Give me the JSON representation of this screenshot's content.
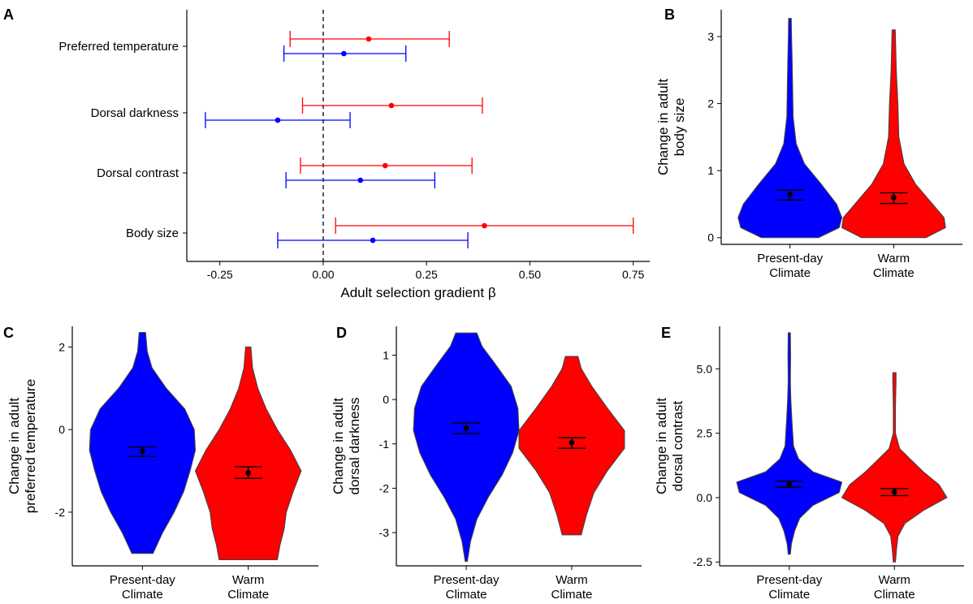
{
  "chart_data": [
    {
      "panel": "A",
      "type": "forest",
      "xlabel": "Adult selection gradient β",
      "xlim": [
        -0.33,
        0.79
      ],
      "xticks": [
        -0.25,
        0.0,
        0.25,
        0.5,
        0.75
      ],
      "xtick_labels": [
        "-0.25",
        "0.00",
        "0.25",
        "0.50",
        "0.75"
      ],
      "reference_line": 0,
      "categories": [
        "Preferred temperature",
        "Dorsal darkness",
        "Dorsal contrast",
        "Body size"
      ],
      "series": [
        {
          "color": "#ff0000",
          "estimate": [
            0.11,
            0.165,
            0.15,
            0.39
          ],
          "lower": [
            -0.08,
            -0.05,
            -0.055,
            0.03
          ],
          "upper": [
            0.305,
            0.385,
            0.36,
            0.75
          ]
        },
        {
          "color": "#0000ff",
          "estimate": [
            0.05,
            -0.11,
            0.09,
            0.12
          ],
          "lower": [
            -0.095,
            -0.285,
            -0.09,
            -0.11
          ],
          "upper": [
            0.2,
            0.065,
            0.27,
            0.35
          ]
        }
      ]
    },
    {
      "panel": "B",
      "type": "violin",
      "ylabel": [
        "Change in adult",
        "body size"
      ],
      "ylim": [
        -0.1,
        3.4
      ],
      "yticks": [
        0,
        1,
        2,
        3
      ],
      "ytick_labels": [
        "0",
        "1",
        "2",
        "3"
      ],
      "categories": [
        [
          "Present-day",
          "Climate"
        ],
        [
          "Warm",
          "Climate"
        ]
      ],
      "groups": [
        {
          "color": "#0000ff",
          "mean": 0.64,
          "se_low": 0.56,
          "se_high": 0.71,
          "density": [
            [
              0.0,
              0.55
            ],
            [
              0.15,
              0.95
            ],
            [
              0.3,
              1.0
            ],
            [
              0.5,
              0.9
            ],
            [
              0.8,
              0.6
            ],
            [
              1.1,
              0.28
            ],
            [
              1.4,
              0.12
            ],
            [
              1.8,
              0.06
            ],
            [
              2.3,
              0.05
            ],
            [
              2.7,
              0.04
            ],
            [
              3.0,
              0.03
            ],
            [
              3.27,
              0.025
            ]
          ]
        },
        {
          "color": "#ff0000",
          "mean": 0.6,
          "se_low": 0.51,
          "se_high": 0.67,
          "density": [
            [
              0.0,
              0.62
            ],
            [
              0.15,
              1.0
            ],
            [
              0.3,
              0.97
            ],
            [
              0.5,
              0.75
            ],
            [
              0.8,
              0.42
            ],
            [
              1.1,
              0.2
            ],
            [
              1.5,
              0.1
            ],
            [
              2.0,
              0.08
            ],
            [
              2.5,
              0.05
            ],
            [
              2.8,
              0.04
            ],
            [
              3.1,
              0.03
            ]
          ]
        }
      ]
    },
    {
      "panel": "C",
      "type": "violin",
      "ylabel": [
        "Change in adult",
        "preferred temperature"
      ],
      "ylim": [
        -3.3,
        2.5
      ],
      "yticks": [
        -2,
        0,
        2
      ],
      "ytick_labels": [
        "-2",
        "0",
        "2"
      ],
      "categories": [
        [
          "Present-day",
          "Climate"
        ],
        [
          "Warm",
          "Climate"
        ]
      ],
      "groups": [
        {
          "color": "#0000ff",
          "mean": -0.52,
          "se_low": -0.65,
          "se_high": -0.42,
          "density": [
            [
              -3.0,
              0.2
            ],
            [
              -2.5,
              0.38
            ],
            [
              -2.0,
              0.6
            ],
            [
              -1.5,
              0.78
            ],
            [
              -1.0,
              0.9
            ],
            [
              -0.5,
              1.0
            ],
            [
              0.0,
              0.98
            ],
            [
              0.5,
              0.8
            ],
            [
              1.0,
              0.45
            ],
            [
              1.5,
              0.18
            ],
            [
              1.9,
              0.09
            ],
            [
              2.35,
              0.06
            ]
          ]
        },
        {
          "color": "#ff0000",
          "mean": -1.05,
          "se_low": -1.18,
          "se_high": -0.9,
          "density": [
            [
              -3.15,
              0.55
            ],
            [
              -2.8,
              0.6
            ],
            [
              -2.4,
              0.68
            ],
            [
              -2.0,
              0.72
            ],
            [
              -1.5,
              0.85
            ],
            [
              -1.0,
              1.0
            ],
            [
              -0.5,
              0.8
            ],
            [
              0.0,
              0.55
            ],
            [
              0.5,
              0.34
            ],
            [
              1.0,
              0.18
            ],
            [
              1.5,
              0.08
            ],
            [
              2.0,
              0.05
            ]
          ]
        }
      ]
    },
    {
      "panel": "D",
      "type": "violin",
      "ylabel": [
        "Change in adult",
        "dorsal darkness"
      ],
      "ylim": [
        -3.75,
        1.65
      ],
      "yticks": [
        -3,
        -2,
        -1,
        0,
        1
      ],
      "ytick_labels": [
        "-3",
        "-2",
        "-1",
        "0",
        "1"
      ],
      "categories": [
        [
          "Present-day",
          "Climate"
        ],
        [
          "Warm",
          "Climate"
        ]
      ],
      "groups": [
        {
          "color": "#0000ff",
          "mean": -0.65,
          "se_low": -0.77,
          "se_high": -0.53,
          "density": [
            [
              -3.65,
              0.02
            ],
            [
              -3.2,
              0.08
            ],
            [
              -2.7,
              0.2
            ],
            [
              -2.2,
              0.42
            ],
            [
              -1.7,
              0.68
            ],
            [
              -1.2,
              0.88
            ],
            [
              -0.7,
              1.0
            ],
            [
              -0.2,
              0.98
            ],
            [
              0.3,
              0.85
            ],
            [
              0.8,
              0.55
            ],
            [
              1.2,
              0.3
            ],
            [
              1.5,
              0.2
            ]
          ]
        },
        {
          "color": "#ff0000",
          "mean": -0.97,
          "se_low": -1.1,
          "se_high": -0.86,
          "density": [
            [
              -3.05,
              0.18
            ],
            [
              -2.6,
              0.28
            ],
            [
              -2.1,
              0.42
            ],
            [
              -1.6,
              0.68
            ],
            [
              -1.1,
              1.0
            ],
            [
              -0.7,
              1.0
            ],
            [
              -0.2,
              0.68
            ],
            [
              0.3,
              0.38
            ],
            [
              0.7,
              0.18
            ],
            [
              0.97,
              0.12
            ]
          ]
        }
      ]
    },
    {
      "panel": "E",
      "type": "violin",
      "ylabel": [
        "Change in adult",
        "dorsal contrast"
      ],
      "ylim": [
        -2.65,
        6.65
      ],
      "yticks": [
        -2.5,
        0.0,
        2.5,
        5.0
      ],
      "ytick_labels": [
        "-2.5",
        "0.0",
        "2.5",
        "5.0"
      ],
      "categories": [
        [
          "Present-day",
          "Climate"
        ],
        [
          "Warm",
          "Climate"
        ]
      ],
      "groups": [
        {
          "color": "#0000ff",
          "mean": 0.52,
          "se_low": 0.4,
          "se_high": 0.64,
          "density": [
            [
              -2.2,
              0.02
            ],
            [
              -1.8,
              0.04
            ],
            [
              -1.3,
              0.1
            ],
            [
              -0.8,
              0.2
            ],
            [
              -0.3,
              0.45
            ],
            [
              0.2,
              0.95
            ],
            [
              0.6,
              1.0
            ],
            [
              1.0,
              0.45
            ],
            [
              1.5,
              0.18
            ],
            [
              2.0,
              0.08
            ],
            [
              3.0,
              0.05
            ],
            [
              3.8,
              0.03
            ],
            [
              4.5,
              0.02
            ],
            [
              5.5,
              0.025
            ],
            [
              6.4,
              0.02
            ]
          ]
        },
        {
          "color": "#ff0000",
          "mean": 0.22,
          "se_low": 0.08,
          "se_high": 0.35,
          "density": [
            [
              -2.5,
              0.02
            ],
            [
              -2.0,
              0.04
            ],
            [
              -1.5,
              0.07
            ],
            [
              -1.0,
              0.2
            ],
            [
              -0.5,
              0.55
            ],
            [
              0.0,
              1.0
            ],
            [
              0.5,
              0.85
            ],
            [
              1.0,
              0.55
            ],
            [
              1.5,
              0.3
            ],
            [
              1.9,
              0.1
            ],
            [
              2.5,
              0.02
            ],
            [
              3.5,
              0.02
            ],
            [
              4.5,
              0.03
            ],
            [
              4.85,
              0.03
            ]
          ]
        }
      ]
    }
  ]
}
